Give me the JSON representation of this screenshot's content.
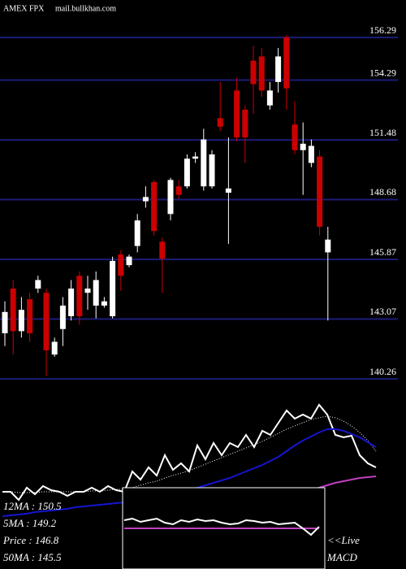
{
  "chart_data": {
    "type": "candlestick",
    "title": "AMEX  FPX",
    "subtitle": "mail.bullkhan.com",
    "ylim": [
      140.11,
      158.05
    ],
    "yticks": [
      156.29,
      154.29,
      151.48,
      148.68,
      145.87,
      143.07,
      140.26
    ],
    "grid": true,
    "grid_color": "#1c1c78",
    "up_color": "#ffffff",
    "down_color": "#cc0000",
    "open": [
      142.4,
      144.5,
      142.5,
      144.0,
      144.5,
      144.3,
      141.4,
      142.6,
      143.2,
      145.1,
      144.3,
      143.7,
      143.7,
      143.2,
      146.1,
      145.6,
      146.5,
      148.6,
      149.5,
      146.7,
      148.0,
      149.3,
      149.3,
      150.6,
      149.3,
      149.3,
      152.5,
      149.0,
      153.8,
      152.9,
      155.2,
      155.4,
      153.1,
      154.2,
      156.3,
      152.2,
      151.0,
      150.4,
      150.7,
      146.2
    ],
    "high": [
      143.9,
      144.9,
      144.1,
      144.3,
      145.1,
      144.5,
      142.2,
      144.1,
      144.9,
      145.3,
      145.1,
      145.3,
      144.1,
      146.0,
      146.3,
      146.1,
      148.0,
      149.3,
      149.6,
      146.9,
      149.7,
      149.6,
      150.8,
      150.9,
      152.0,
      151.0,
      154.2,
      151.6,
      154.4,
      153.1,
      155.9,
      155.8,
      154.2,
      155.8,
      156.4,
      153.3,
      152.3,
      151.5,
      151.0,
      147.4
    ],
    "low": [
      141.8,
      141.4,
      142.2,
      142.0,
      144.3,
      140.4,
      141.3,
      141.8,
      143.0,
      142.8,
      143.5,
      143.1,
      143.6,
      143.1,
      144.4,
      145.5,
      146.2,
      148.3,
      147.0,
      144.3,
      147.7,
      148.7,
      149.2,
      150.4,
      149.1,
      149.2,
      151.9,
      146.6,
      151.4,
      150.4,
      152.7,
      153.5,
      152.9,
      153.7,
      152.9,
      150.8,
      148.9,
      150.2,
      147.0,
      143.0
    ],
    "close": [
      143.4,
      142.5,
      143.5,
      142.4,
      144.9,
      141.6,
      142.0,
      143.7,
      144.5,
      143.2,
      144.5,
      144.9,
      143.9,
      145.8,
      145.1,
      146.0,
      147.7,
      148.8,
      147.2,
      145.9,
      149.6,
      148.9,
      150.6,
      150.7,
      151.5,
      150.8,
      152.1,
      149.2,
      151.6,
      151.6,
      154.1,
      153.8,
      153.8,
      155.4,
      153.9,
      151.0,
      151.3,
      151.2,
      147.4,
      146.8
    ],
    "indicator_panel": {
      "ylim": [
        0,
        230
      ],
      "series": [
        {
          "color": "#ffffff",
          "style": "solid",
          "values": [
            95,
            95,
            85,
            100,
            92,
            102,
            97,
            95,
            90,
            95,
            95,
            100,
            95,
            102,
            97,
            95,
            120,
            110,
            125,
            115,
            140,
            122,
            130,
            120,
            152,
            135,
            155,
            140,
            155,
            150,
            165,
            150,
            170,
            165,
            180,
            195,
            185,
            190,
            185,
            202,
            190,
            165,
            162,
            164,
            140,
            130,
            125
          ]
        },
        {
          "color": "#ffffff",
          "style": "dotted",
          "values": [
            95,
            95,
            94,
            94,
            94,
            95,
            95,
            95,
            95,
            95,
            95,
            96,
            96,
            97,
            98,
            98,
            100,
            103,
            106,
            108,
            112,
            115,
            118,
            121,
            125,
            129,
            133,
            137,
            141,
            145,
            149,
            153,
            157,
            162,
            167,
            172,
            176,
            180,
            184,
            186,
            188,
            186,
            182,
            176,
            168,
            158,
            145
          ]
        },
        {
          "color": "#1515d0",
          "style": "solid",
          "values": [
            65,
            66,
            67,
            68,
            70,
            71,
            72,
            73,
            74,
            76,
            77,
            78,
            79,
            80,
            81,
            82,
            84,
            86,
            88,
            90,
            92,
            94,
            96,
            98,
            100,
            103,
            106,
            109,
            112,
            116,
            120,
            124,
            128,
            133,
            138,
            145,
            152,
            158,
            163,
            168,
            172,
            172,
            170,
            166,
            162,
            156,
            150
          ]
        },
        {
          "color": "#c040c0",
          "style": "solid",
          "values": [
            null,
            null,
            null,
            null,
            null,
            null,
            null,
            null,
            null,
            null,
            null,
            null,
            null,
            null,
            null,
            null,
            null,
            null,
            null,
            null,
            null,
            null,
            null,
            null,
            null,
            null,
            null,
            null,
            null,
            null,
            null,
            null,
            null,
            null,
            null,
            null,
            null,
            null,
            98,
            100,
            103,
            106,
            108,
            110,
            112,
            113,
            114
          ]
        }
      ]
    },
    "macd": {
      "ylim": [
        0,
        100
      ],
      "label": "MACD",
      "series": [
        {
          "color": "#ffffff",
          "values": [
            60,
            62,
            58,
            60,
            62,
            57,
            55,
            60,
            58,
            61,
            59,
            60,
            57,
            55,
            56,
            60,
            59,
            57,
            58,
            55,
            56,
            57,
            50,
            42,
            52
          ]
        },
        {
          "color": "#c040c0",
          "values": [
            50,
            50,
            50,
            50,
            50,
            50,
            50,
            50,
            50,
            50,
            50,
            50,
            50,
            50,
            50,
            50,
            50,
            50,
            50,
            50,
            50,
            50,
            50,
            50,
            50
          ]
        }
      ]
    },
    "info": [
      "12MA : 150.5",
      "5MA : 149.2",
      "Price : 146.8",
      "50MA : 145.5"
    ],
    "live": "<<Live"
  }
}
